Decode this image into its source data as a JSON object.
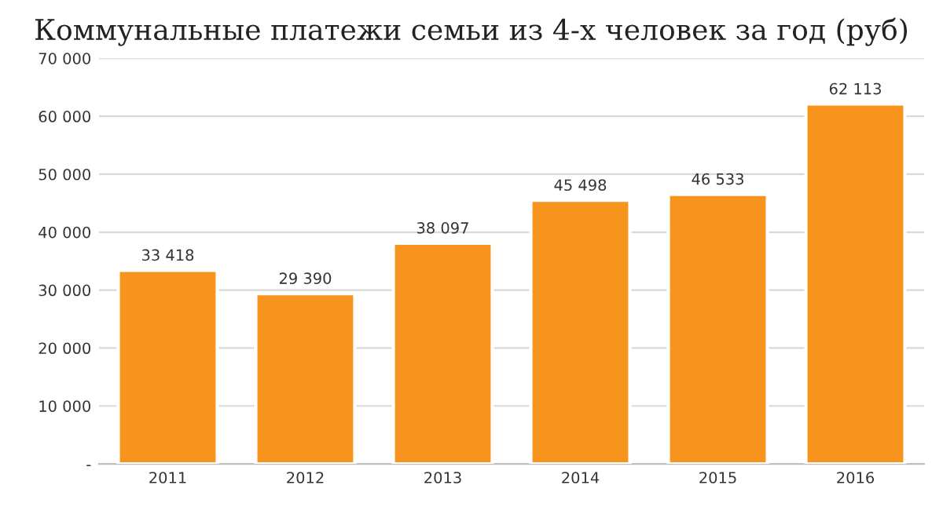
{
  "chart_data": {
    "type": "bar",
    "title": "Коммунальные платежи семьи из 4-х человек за год (руб)",
    "categories": [
      "2011",
      "2012",
      "2013",
      "2014",
      "2015",
      "2016"
    ],
    "values": [
      33418,
      29390,
      38097,
      45498,
      46533,
      62113
    ],
    "value_labels": [
      "33 418",
      "29 390",
      "38 097",
      "45 498",
      "46 533",
      "62 113"
    ],
    "color": "#f7941d",
    "ylim": [
      0,
      70000
    ],
    "yticks": [
      {
        "value": 0,
        "label": "-"
      },
      {
        "value": 10000,
        "label": "10 000"
      },
      {
        "value": 20000,
        "label": "20 000"
      },
      {
        "value": 30000,
        "label": "30 000"
      },
      {
        "value": 40000,
        "label": "40 000"
      },
      {
        "value": 50000,
        "label": "50 000"
      },
      {
        "value": 60000,
        "label": "60 000"
      },
      {
        "value": 70000,
        "label": "70 000"
      }
    ],
    "grid": "y",
    "legend": false
  }
}
